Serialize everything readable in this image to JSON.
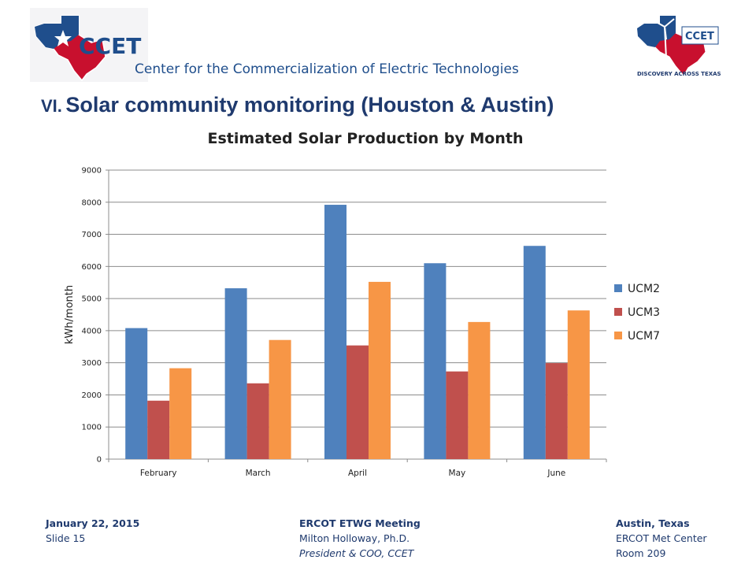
{
  "header": {
    "logo_left_text": "CCET",
    "logo_right_text": "CCET",
    "logo_right_tagline": "DISCOVERY ACROSS TEXAS",
    "org_name": "Center for the Commercialization of Electric Technologies"
  },
  "slide": {
    "title_num": "VI.",
    "title_text": "Solar community monitoring (Houston & Austin)"
  },
  "colors": {
    "ucm2": "#4f81bd",
    "ucm3": "#c0504d",
    "ucm7": "#f79646",
    "brand_blue": "#1f4e8c",
    "brand_red": "#c8102e"
  },
  "chart_data": {
    "type": "bar",
    "title": "Estimated Solar Production by Month",
    "xlabel": "",
    "ylabel": "kWh/month",
    "ylim": [
      0,
      9000
    ],
    "yticks": [
      0,
      1000,
      2000,
      3000,
      4000,
      5000,
      6000,
      7000,
      8000,
      9000
    ],
    "grid": true,
    "legend_position": "right",
    "categories": [
      "February",
      "March",
      "April",
      "May",
      "June"
    ],
    "series": [
      {
        "name": "UCM2",
        "values": [
          4080,
          5320,
          7920,
          6100,
          6640
        ]
      },
      {
        "name": "UCM3",
        "values": [
          1820,
          2360,
          3540,
          2730,
          2990
        ]
      },
      {
        "name": "UCM7",
        "values": [
          2830,
          3710,
          5520,
          4270,
          4630
        ]
      }
    ]
  },
  "footer": {
    "left": {
      "line1": "January 22, 2015",
      "line2": "Slide 15"
    },
    "center": {
      "line1": "ERCOT ETWG Meeting",
      "line2": "Milton Holloway, Ph.D.",
      "line3": "President & COO, CCET"
    },
    "right": {
      "line1": "Austin, Texas",
      "line2": "ERCOT Met Center",
      "line3": "Room 209"
    }
  }
}
